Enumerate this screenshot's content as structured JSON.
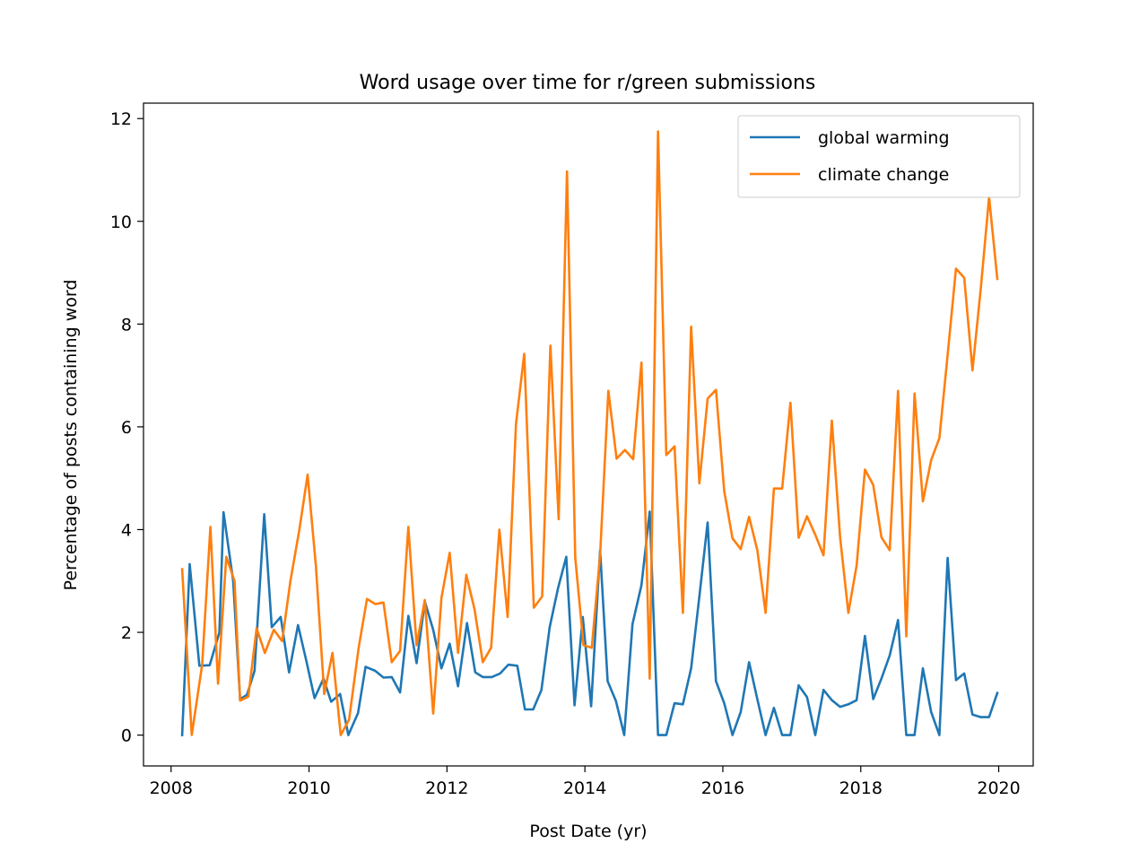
{
  "chart_data": {
    "type": "line",
    "title": "Word usage over time for r/green submissions",
    "xlabel": "Post Date (yr)",
    "ylabel": "Percentage of posts containing word",
    "xlim": [
      2007.6,
      2020.5
    ],
    "ylim": [
      -0.6,
      12.3
    ],
    "xticks": [
      2008,
      2010,
      2012,
      2014,
      2016,
      2018,
      2020
    ],
    "xtick_labels": [
      "2008",
      "2010",
      "2012",
      "2014",
      "2016",
      "2018",
      "2020"
    ],
    "yticks": [
      0,
      2,
      4,
      6,
      8,
      10,
      12
    ],
    "ytick_labels": [
      "0",
      "2",
      "4",
      "6",
      "8",
      "10",
      "12"
    ],
    "grid": false,
    "legend_position": "top-right",
    "series": [
      {
        "name": "global warming",
        "color": "#1f77b4",
        "values": [
          [
            2008.16,
            0.0
          ],
          [
            2008.27,
            3.33
          ],
          [
            2008.41,
            1.35
          ],
          [
            2008.56,
            1.36
          ],
          [
            2008.7,
            2.0
          ],
          [
            2008.76,
            4.34
          ],
          [
            2008.9,
            3.0
          ],
          [
            2009.0,
            0.7
          ],
          [
            2009.1,
            0.78
          ],
          [
            2009.21,
            1.25
          ],
          [
            2009.35,
            4.3
          ],
          [
            2009.46,
            2.1
          ],
          [
            2009.59,
            2.3
          ],
          [
            2009.71,
            1.22
          ],
          [
            2009.84,
            2.14
          ],
          [
            2009.96,
            1.45
          ],
          [
            2010.08,
            0.72
          ],
          [
            2010.21,
            1.1
          ],
          [
            2010.32,
            0.65
          ],
          [
            2010.45,
            0.8
          ],
          [
            2010.57,
            0.0
          ],
          [
            2010.71,
            0.43
          ],
          [
            2010.82,
            1.33
          ],
          [
            2010.96,
            1.25
          ],
          [
            2011.08,
            1.12
          ],
          [
            2011.2,
            1.13
          ],
          [
            2011.32,
            0.83
          ],
          [
            2011.44,
            2.32
          ],
          [
            2011.56,
            1.4
          ],
          [
            2011.68,
            2.6
          ],
          [
            2011.8,
            2.05
          ],
          [
            2011.92,
            1.3
          ],
          [
            2012.04,
            1.78
          ],
          [
            2012.16,
            0.95
          ],
          [
            2012.29,
            2.18
          ],
          [
            2012.41,
            1.22
          ],
          [
            2012.52,
            1.13
          ],
          [
            2012.65,
            1.13
          ],
          [
            2012.77,
            1.2
          ],
          [
            2012.89,
            1.37
          ],
          [
            2013.02,
            1.35
          ],
          [
            2013.13,
            0.5
          ],
          [
            2013.25,
            0.5
          ],
          [
            2013.37,
            0.88
          ],
          [
            2013.49,
            2.1
          ],
          [
            2013.61,
            2.86
          ],
          [
            2013.73,
            3.47
          ],
          [
            2013.85,
            0.58
          ],
          [
            2013.97,
            2.3
          ],
          [
            2014.09,
            0.56
          ],
          [
            2014.22,
            3.6
          ],
          [
            2014.33,
            1.05
          ],
          [
            2014.45,
            0.66
          ],
          [
            2014.57,
            0.0
          ],
          [
            2014.69,
            2.16
          ],
          [
            2014.82,
            2.92
          ],
          [
            2014.94,
            4.35
          ],
          [
            2015.06,
            0.0
          ],
          [
            2015.18,
            0.0
          ],
          [
            2015.3,
            0.62
          ],
          [
            2015.42,
            0.6
          ],
          [
            2015.54,
            1.3
          ],
          [
            2015.66,
            2.7
          ],
          [
            2015.78,
            4.14
          ],
          [
            2015.9,
            1.05
          ],
          [
            2016.02,
            0.62
          ],
          [
            2016.14,
            0.0
          ],
          [
            2016.26,
            0.45
          ],
          [
            2016.38,
            1.42
          ],
          [
            2016.5,
            0.7
          ],
          [
            2016.62,
            0.0
          ],
          [
            2016.74,
            0.53
          ],
          [
            2016.86,
            0.0
          ],
          [
            2016.98,
            0.0
          ],
          [
            2017.1,
            0.97
          ],
          [
            2017.22,
            0.74
          ],
          [
            2017.34,
            0.0
          ],
          [
            2017.46,
            0.88
          ],
          [
            2017.58,
            0.68
          ],
          [
            2017.7,
            0.55
          ],
          [
            2017.82,
            0.6
          ],
          [
            2017.94,
            0.68
          ],
          [
            2018.06,
            1.93
          ],
          [
            2018.18,
            0.7
          ],
          [
            2018.3,
            1.1
          ],
          [
            2018.42,
            1.55
          ],
          [
            2018.54,
            2.24
          ],
          [
            2018.66,
            0.0
          ],
          [
            2018.78,
            0.0
          ],
          [
            2018.9,
            1.3
          ],
          [
            2019.02,
            0.45
          ],
          [
            2019.14,
            0.0
          ],
          [
            2019.26,
            3.45
          ],
          [
            2019.38,
            1.07
          ],
          [
            2019.5,
            1.2
          ],
          [
            2019.62,
            0.4
          ],
          [
            2019.74,
            0.35
          ],
          [
            2019.86,
            0.35
          ],
          [
            2019.98,
            0.82
          ]
        ]
      },
      {
        "name": "climate change",
        "color": "#ff7f0e",
        "values": [
          [
            2008.16,
            3.23
          ],
          [
            2008.3,
            0.0
          ],
          [
            2008.45,
            1.37
          ],
          [
            2008.57,
            4.05
          ],
          [
            2008.68,
            1.0
          ],
          [
            2008.8,
            3.47
          ],
          [
            2008.92,
            3.0
          ],
          [
            2009.0,
            0.67
          ],
          [
            2009.12,
            0.75
          ],
          [
            2009.24,
            2.08
          ],
          [
            2009.36,
            1.6
          ],
          [
            2009.49,
            2.05
          ],
          [
            2009.61,
            1.83
          ],
          [
            2009.73,
            3.0
          ],
          [
            2009.86,
            4.0
          ],
          [
            2009.98,
            5.07
          ],
          [
            2010.1,
            3.3
          ],
          [
            2010.22,
            0.8
          ],
          [
            2010.34,
            1.6
          ],
          [
            2010.46,
            0.0
          ],
          [
            2010.58,
            0.3
          ],
          [
            2010.72,
            1.7
          ],
          [
            2010.84,
            2.65
          ],
          [
            2010.96,
            2.55
          ],
          [
            2011.08,
            2.58
          ],
          [
            2011.2,
            1.42
          ],
          [
            2011.32,
            1.64
          ],
          [
            2011.44,
            4.05
          ],
          [
            2011.56,
            1.75
          ],
          [
            2011.68,
            2.63
          ],
          [
            2011.8,
            0.42
          ],
          [
            2011.92,
            2.67
          ],
          [
            2012.04,
            3.55
          ],
          [
            2012.16,
            1.6
          ],
          [
            2012.28,
            3.12
          ],
          [
            2012.4,
            2.45
          ],
          [
            2012.52,
            1.42
          ],
          [
            2012.64,
            1.7
          ],
          [
            2012.76,
            4.0
          ],
          [
            2012.88,
            2.3
          ],
          [
            2013.0,
            6.05
          ],
          [
            2013.12,
            7.42
          ],
          [
            2013.26,
            2.48
          ],
          [
            2013.38,
            2.7
          ],
          [
            2013.5,
            7.58
          ],
          [
            2013.62,
            4.2
          ],
          [
            2013.74,
            10.97
          ],
          [
            2013.86,
            3.45
          ],
          [
            2013.98,
            1.75
          ],
          [
            2014.1,
            1.7
          ],
          [
            2014.22,
            3.5
          ],
          [
            2014.34,
            6.7
          ],
          [
            2014.46,
            5.38
          ],
          [
            2014.58,
            5.55
          ],
          [
            2014.7,
            5.37
          ],
          [
            2014.82,
            7.25
          ],
          [
            2014.94,
            1.1
          ],
          [
            2015.06,
            11.75
          ],
          [
            2015.18,
            5.45
          ],
          [
            2015.3,
            5.62
          ],
          [
            2015.42,
            2.38
          ],
          [
            2015.54,
            7.95
          ],
          [
            2015.66,
            4.9
          ],
          [
            2015.78,
            6.55
          ],
          [
            2015.9,
            6.72
          ],
          [
            2016.02,
            4.75
          ],
          [
            2016.14,
            3.83
          ],
          [
            2016.26,
            3.62
          ],
          [
            2016.38,
            4.25
          ],
          [
            2016.5,
            3.6
          ],
          [
            2016.62,
            2.38
          ],
          [
            2016.74,
            4.8
          ],
          [
            2016.86,
            4.8
          ],
          [
            2016.98,
            6.47
          ],
          [
            2017.1,
            3.84
          ],
          [
            2017.22,
            4.26
          ],
          [
            2017.34,
            3.9
          ],
          [
            2017.46,
            3.5
          ],
          [
            2017.58,
            6.12
          ],
          [
            2017.7,
            3.85
          ],
          [
            2017.82,
            2.38
          ],
          [
            2017.94,
            3.3
          ],
          [
            2018.06,
            5.17
          ],
          [
            2018.18,
            4.87
          ],
          [
            2018.3,
            3.85
          ],
          [
            2018.42,
            3.6
          ],
          [
            2018.54,
            6.7
          ],
          [
            2018.66,
            1.92
          ],
          [
            2018.78,
            6.65
          ],
          [
            2018.9,
            4.55
          ],
          [
            2019.02,
            5.35
          ],
          [
            2019.14,
            5.78
          ],
          [
            2019.26,
            7.4
          ],
          [
            2019.38,
            9.08
          ],
          [
            2019.5,
            8.9
          ],
          [
            2019.62,
            7.1
          ],
          [
            2019.74,
            8.7
          ],
          [
            2019.86,
            10.47
          ],
          [
            2019.98,
            8.88
          ]
        ]
      }
    ]
  }
}
